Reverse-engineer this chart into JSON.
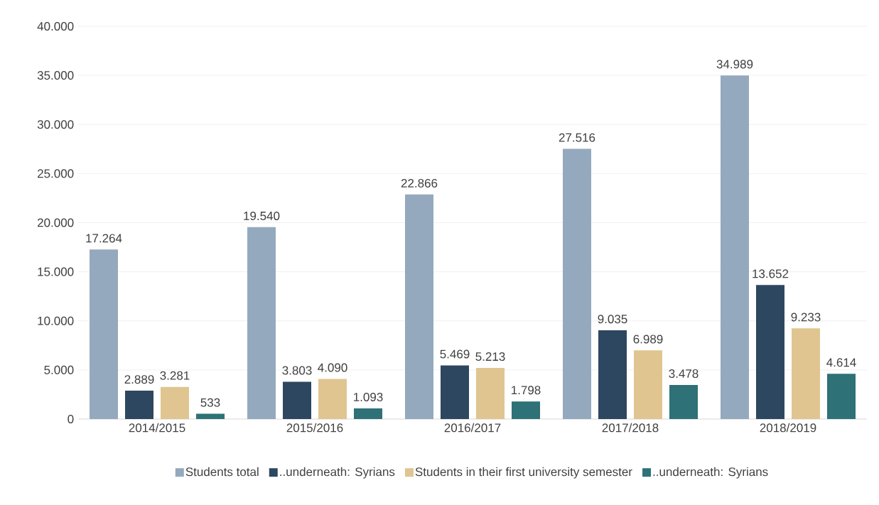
{
  "chart_data": {
    "type": "bar",
    "categories": [
      "2014/2015",
      "2015/2016",
      "2016/2017",
      "2017/2018",
      "2018/2019"
    ],
    "series": [
      {
        "name": "Students total",
        "color": "#94a9bd",
        "values": [
          17264,
          19540,
          22866,
          27516,
          34989
        ],
        "value_labels": [
          "17.264",
          "19.540",
          "22.866",
          "27.516",
          "34.989"
        ]
      },
      {
        "name": "..underneath: Syrians",
        "color": "#2e4760",
        "values": [
          2889,
          3803,
          5469,
          9035,
          13652
        ],
        "value_labels": [
          "2.889",
          "3.803",
          "5.469",
          "9.035",
          "13.652"
        ]
      },
      {
        "name": "Students in their first university semester",
        "color": "#e0c591",
        "values": [
          3281,
          4090,
          5213,
          6989,
          9233
        ],
        "value_labels": [
          "3.281",
          "4.090",
          "5.213",
          "6.989",
          "9.233"
        ]
      },
      {
        "name": "..underneath: Syrians",
        "color": "#2e7177",
        "values": [
          533,
          1093,
          1798,
          3478,
          4614
        ],
        "value_labels": [
          "533",
          "1.093",
          "1.798",
          "3.478",
          "4.614"
        ]
      }
    ],
    "ylim": [
      0,
      40000
    ],
    "yticks": [
      {
        "value": 0,
        "label": "0"
      },
      {
        "value": 5000,
        "label": "5.000"
      },
      {
        "value": 10000,
        "label": "10.000"
      },
      {
        "value": 15000,
        "label": "15.000"
      },
      {
        "value": 20000,
        "label": "20.000"
      },
      {
        "value": 25000,
        "label": "25.000"
      },
      {
        "value": 30000,
        "label": "30.000"
      },
      {
        "value": 35000,
        "label": "35.000"
      },
      {
        "value": 40000,
        "label": "40.000"
      }
    ],
    "grid": "y",
    "legend": "bottom"
  }
}
